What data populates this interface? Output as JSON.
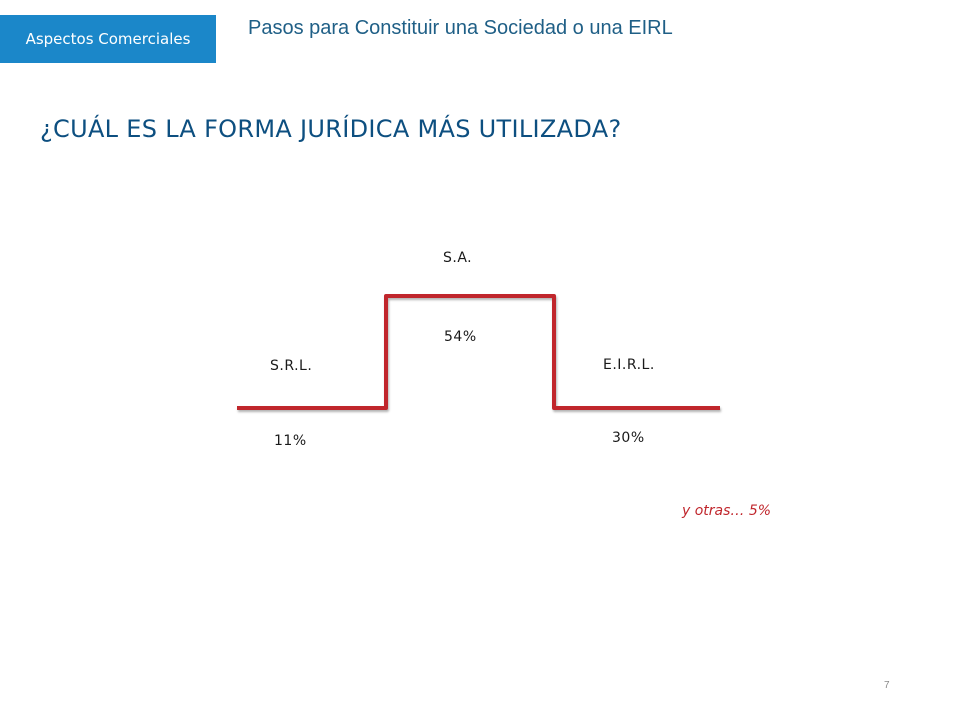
{
  "header": {
    "badge_label": "Aspectos Comerciales",
    "subtitle": "Pasos para Constituir una Sociedad o una EIRL"
  },
  "heading": "¿CUÁL ES LA FORMA JURÍDICA MÁS UTILIZADA?",
  "chart_data": {
    "type": "bar",
    "categories": [
      "S.R.L.",
      "S.A.",
      "E.I.R.L."
    ],
    "values": [
      11,
      54,
      30
    ],
    "value_labels": [
      "11%",
      "54%",
      "30%"
    ],
    "unit": "%",
    "line_color": "#c0262c",
    "note": "y otras… 5%"
  },
  "page_number": "7"
}
